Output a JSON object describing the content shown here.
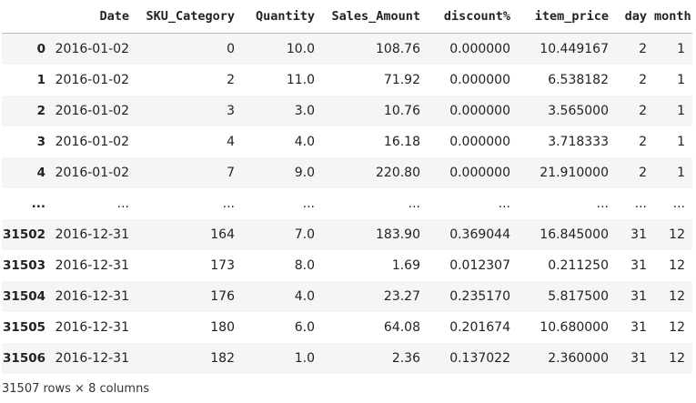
{
  "table": {
    "columns": {
      "index": "",
      "date": "Date",
      "sku": "SKU_Category",
      "qty": "Quantity",
      "sales": "Sales_Amount",
      "disc": "discount%",
      "price": "item_price",
      "day": "day",
      "month": "month"
    },
    "rows": [
      {
        "index": "0",
        "date": "2016-01-02",
        "sku": "0",
        "qty": "10.0",
        "sales": "108.76",
        "disc": "0.000000",
        "price": "10.449167",
        "day": "2",
        "month": "1"
      },
      {
        "index": "1",
        "date": "2016-01-02",
        "sku": "2",
        "qty": "11.0",
        "sales": "71.92",
        "disc": "0.000000",
        "price": "6.538182",
        "day": "2",
        "month": "1"
      },
      {
        "index": "2",
        "date": "2016-01-02",
        "sku": "3",
        "qty": "3.0",
        "sales": "10.76",
        "disc": "0.000000",
        "price": "3.565000",
        "day": "2",
        "month": "1"
      },
      {
        "index": "3",
        "date": "2016-01-02",
        "sku": "4",
        "qty": "4.0",
        "sales": "16.18",
        "disc": "0.000000",
        "price": "3.718333",
        "day": "2",
        "month": "1"
      },
      {
        "index": "4",
        "date": "2016-01-02",
        "sku": "7",
        "qty": "9.0",
        "sales": "220.80",
        "disc": "0.000000",
        "price": "21.910000",
        "day": "2",
        "month": "1"
      },
      {
        "index": "...",
        "date": "...",
        "sku": "...",
        "qty": "...",
        "sales": "...",
        "disc": "...",
        "price": "...",
        "day": "...",
        "month": "..."
      },
      {
        "index": "31502",
        "date": "2016-12-31",
        "sku": "164",
        "qty": "7.0",
        "sales": "183.90",
        "disc": "0.369044",
        "price": "16.845000",
        "day": "31",
        "month": "12"
      },
      {
        "index": "31503",
        "date": "2016-12-31",
        "sku": "173",
        "qty": "8.0",
        "sales": "1.69",
        "disc": "0.012307",
        "price": "0.211250",
        "day": "31",
        "month": "12"
      },
      {
        "index": "31504",
        "date": "2016-12-31",
        "sku": "176",
        "qty": "4.0",
        "sales": "23.27",
        "disc": "0.235170",
        "price": "5.817500",
        "day": "31",
        "month": "12"
      },
      {
        "index": "31505",
        "date": "2016-12-31",
        "sku": "180",
        "qty": "6.0",
        "sales": "64.08",
        "disc": "0.201674",
        "price": "10.680000",
        "day": "31",
        "month": "12"
      },
      {
        "index": "31506",
        "date": "2016-12-31",
        "sku": "182",
        "qty": "1.0",
        "sales": "2.36",
        "disc": "0.137022",
        "price": "2.360000",
        "day": "31",
        "month": "12"
      }
    ]
  },
  "footer": {
    "shape_text": "31507 rows × 8 columns"
  }
}
